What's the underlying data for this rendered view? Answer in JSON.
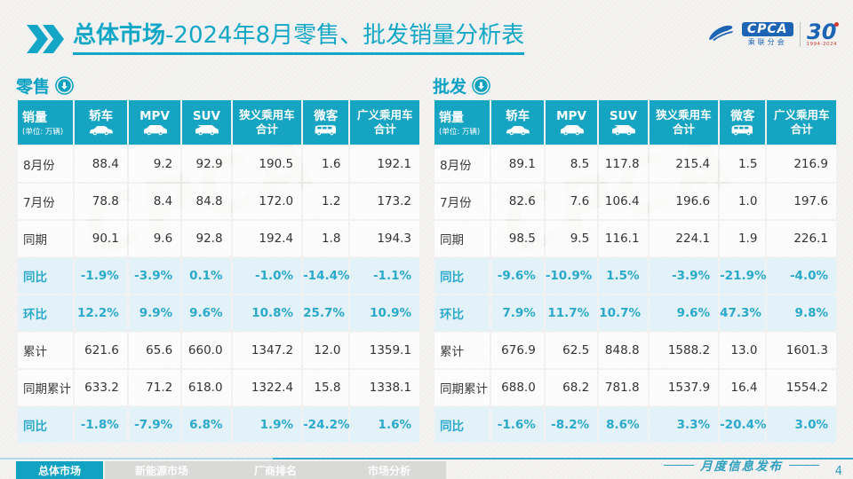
{
  "header": {
    "title_strong": "总体市场",
    "title_rest": "-2024年8月零售、批发销量分析表",
    "logo": {
      "cpca": "CPCA",
      "assoc": "乘联分会",
      "anniv": "30",
      "years": "1994-2024"
    }
  },
  "icons": {
    "column_icons": [
      "sedan-icon",
      "mpv-icon",
      "suv-icon",
      null,
      "minibus-icon",
      null
    ],
    "section_icon": "down-arrow-circle-icon",
    "title_icon": "double-chevron-icon"
  },
  "chart_data": [
    {
      "type": "table",
      "title": "零售",
      "corner_label": "销量",
      "corner_sub": "(单位: 万辆)",
      "columns": [
        "轿车",
        "MPV",
        "SUV",
        "狭义乘用车合计",
        "微客",
        "广义乘用车合计"
      ],
      "rows": [
        {
          "label": "8月份",
          "kind": "value",
          "values": [
            "88.4",
            "9.2",
            "92.9",
            "190.5",
            "1.6",
            "192.1"
          ]
        },
        {
          "label": "7月份",
          "kind": "value",
          "values": [
            "78.8",
            "8.4",
            "84.8",
            "172.0",
            "1.2",
            "173.2"
          ]
        },
        {
          "label": "同期",
          "kind": "value",
          "values": [
            "90.1",
            "9.6",
            "92.8",
            "192.4",
            "1.8",
            "194.3"
          ]
        },
        {
          "label": "同比",
          "kind": "percent",
          "values": [
            "-1.9%",
            "-3.9%",
            "0.1%",
            "-1.0%",
            "-14.4%",
            "-1.1%"
          ]
        },
        {
          "label": "环比",
          "kind": "percent",
          "values": [
            "12.2%",
            "9.9%",
            "9.6%",
            "10.8%",
            "25.7%",
            "10.9%"
          ]
        },
        {
          "label": "累计",
          "kind": "value",
          "values": [
            "621.6",
            "65.6",
            "660.0",
            "1347.2",
            "12.0",
            "1359.1"
          ]
        },
        {
          "label": "同期累计",
          "kind": "value",
          "values": [
            "633.2",
            "71.2",
            "618.0",
            "1322.4",
            "15.8",
            "1338.1"
          ]
        },
        {
          "label": "同比",
          "kind": "percent",
          "values": [
            "-1.8%",
            "-7.9%",
            "6.8%",
            "1.9%",
            "-24.2%",
            "1.6%"
          ]
        }
      ]
    },
    {
      "type": "table",
      "title": "批发",
      "corner_label": "销量",
      "corner_sub": "(单位: 万辆)",
      "columns": [
        "轿车",
        "MPV",
        "SUV",
        "狭义乘用车合计",
        "微客",
        "广义乘用车合计"
      ],
      "rows": [
        {
          "label": "8月份",
          "kind": "value",
          "values": [
            "89.1",
            "8.5",
            "117.8",
            "215.4",
            "1.5",
            "216.9"
          ]
        },
        {
          "label": "7月份",
          "kind": "value",
          "values": [
            "82.6",
            "7.6",
            "106.4",
            "196.6",
            "1.0",
            "197.6"
          ]
        },
        {
          "label": "同期",
          "kind": "value",
          "values": [
            "98.5",
            "9.5",
            "116.1",
            "224.1",
            "1.9",
            "226.1"
          ]
        },
        {
          "label": "同比",
          "kind": "percent",
          "values": [
            "-9.6%",
            "-10.9%",
            "1.5%",
            "-3.9%",
            "-21.9%",
            "-4.0%"
          ]
        },
        {
          "label": "环比",
          "kind": "percent",
          "values": [
            "7.9%",
            "11.7%",
            "10.7%",
            "9.6%",
            "47.3%",
            "9.8%"
          ]
        },
        {
          "label": "累计",
          "kind": "value",
          "values": [
            "676.9",
            "62.5",
            "848.8",
            "1588.2",
            "13.0",
            "1601.3"
          ]
        },
        {
          "label": "同期累计",
          "kind": "value",
          "values": [
            "688.0",
            "68.2",
            "781.8",
            "1537.9",
            "16.4",
            "1554.2"
          ]
        },
        {
          "label": "同比",
          "kind": "percent",
          "values": [
            "-1.6%",
            "-8.2%",
            "8.6%",
            "3.3%",
            "-20.4%",
            "3.0%"
          ]
        }
      ]
    }
  ],
  "footer": {
    "tabs": [
      {
        "label": "总体市场",
        "active": true
      },
      {
        "label": "新能源市场",
        "active": false
      },
      {
        "label": "厂商排名",
        "active": false
      },
      {
        "label": "市场分析",
        "active": false
      }
    ],
    "publish": "月度信息发布",
    "page": "4"
  },
  "colors": {
    "accent_teal": "#15a4c2",
    "title_cyan": "#12a7c6",
    "percent_text": "#2aa9cc",
    "percent_bg": "#e3f2f8",
    "logo_blue": "#1d64b4",
    "anniversary_red": "#d03a2b",
    "inactive_tab": "#d9d9d8"
  }
}
